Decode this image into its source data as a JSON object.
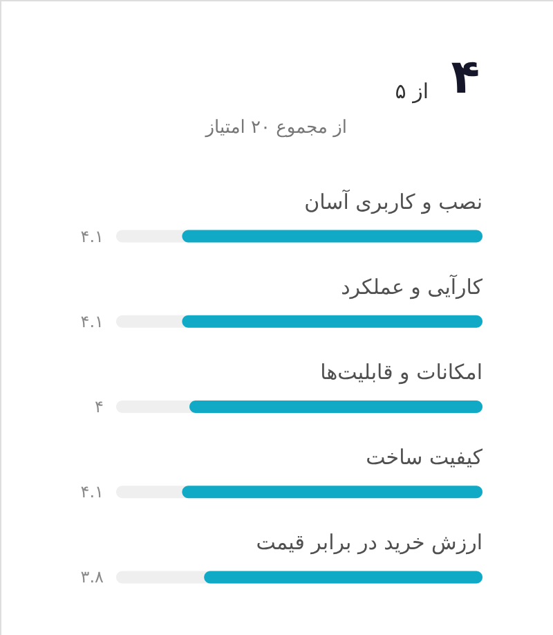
{
  "chart_data": {
    "type": "bar",
    "orientation": "horizontal",
    "title": "۴",
    "subtitle": "از ۵",
    "annotations": [
      "از مجموع ۲۰ امتیاز"
    ],
    "categories": [
      "نصب و کاربری آسان",
      "کارآیی و عملکرد",
      "امکانات و قابلیت‌ها",
      "کیفیت ساخت",
      "ارزش خرید در برابر قیمت"
    ],
    "values": [
      4.1,
      4.1,
      4,
      4.1,
      3.8
    ],
    "value_labels": [
      "۴.۱",
      "۴.۱",
      "۴",
      "۴.۱",
      "۳.۸"
    ],
    "color": "#10a9c6",
    "xlim": [
      5,
      0
    ],
    "tick_labels": "y"
  }
}
